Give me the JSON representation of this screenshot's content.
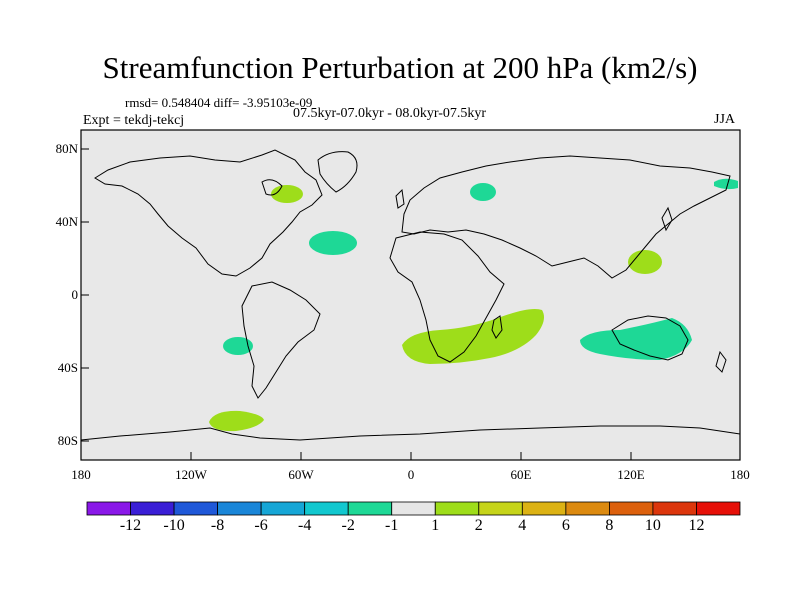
{
  "title": "Streamfunction Perturbation at 200 hPa (km2/s)",
  "stats": "rmsd= 0.548404 diff= -3.95103e-09",
  "period": "07.5kyr-07.0kyr - 08.0kyr-07.5kyr",
  "experiment": "Expt = tekdj-tekcj",
  "season": "JJA",
  "map": {
    "lon_range": [
      -180,
      180
    ],
    "lat_range": [
      -90,
      90
    ],
    "ocean_color": "#e8e8e8",
    "x_ticks": [
      "180",
      "120W",
      "60W",
      "0",
      "60E",
      "120E",
      "180"
    ],
    "y_ticks": [
      "80N",
      "40N",
      "0",
      "40S",
      "80S"
    ],
    "anomaly_regions": [
      {
        "name": "hudson-bay",
        "lon": -65,
        "lat": 55,
        "category": "1 to 2"
      },
      {
        "name": "north-atlantic",
        "lon": -42,
        "lat": 30,
        "category": "-2 to -1"
      },
      {
        "name": "russia",
        "lon": 40,
        "lat": 58,
        "category": "-2 to -1"
      },
      {
        "name": "bering",
        "lon": 172,
        "lat": 63,
        "category": "-2 to -1"
      },
      {
        "name": "western-pacific",
        "lon": 125,
        "lat": 18,
        "category": "1 to 2"
      },
      {
        "name": "southern-africa",
        "lon": 48,
        "lat": -30,
        "category": "1 to 2"
      },
      {
        "name": "australia",
        "lon": 128,
        "lat": -26,
        "category": "-2 to -1"
      },
      {
        "name": "south-pacific",
        "lon": -97,
        "lat": -27,
        "category": "-2 to -1"
      },
      {
        "name": "antarctic-peninsula",
        "lon": -95,
        "lat": -69,
        "category": "1 to 2"
      }
    ]
  },
  "colorbar": {
    "labels": [
      "-12",
      "-10",
      "-8",
      "-6",
      "-4",
      "-2",
      "-1",
      "1",
      "2",
      "4",
      "6",
      "8",
      "10",
      "12"
    ],
    "colors": [
      "#8a18e8",
      "#3a1ed6",
      "#1f58d8",
      "#1a86d8",
      "#16a6d6",
      "#12c8cf",
      "#1ed896",
      "#e6e6e6",
      "#9edd1a",
      "#c6d41a",
      "#dcb214",
      "#dc8a10",
      "#dc600c",
      "#dc360c",
      "#e61008"
    ]
  }
}
